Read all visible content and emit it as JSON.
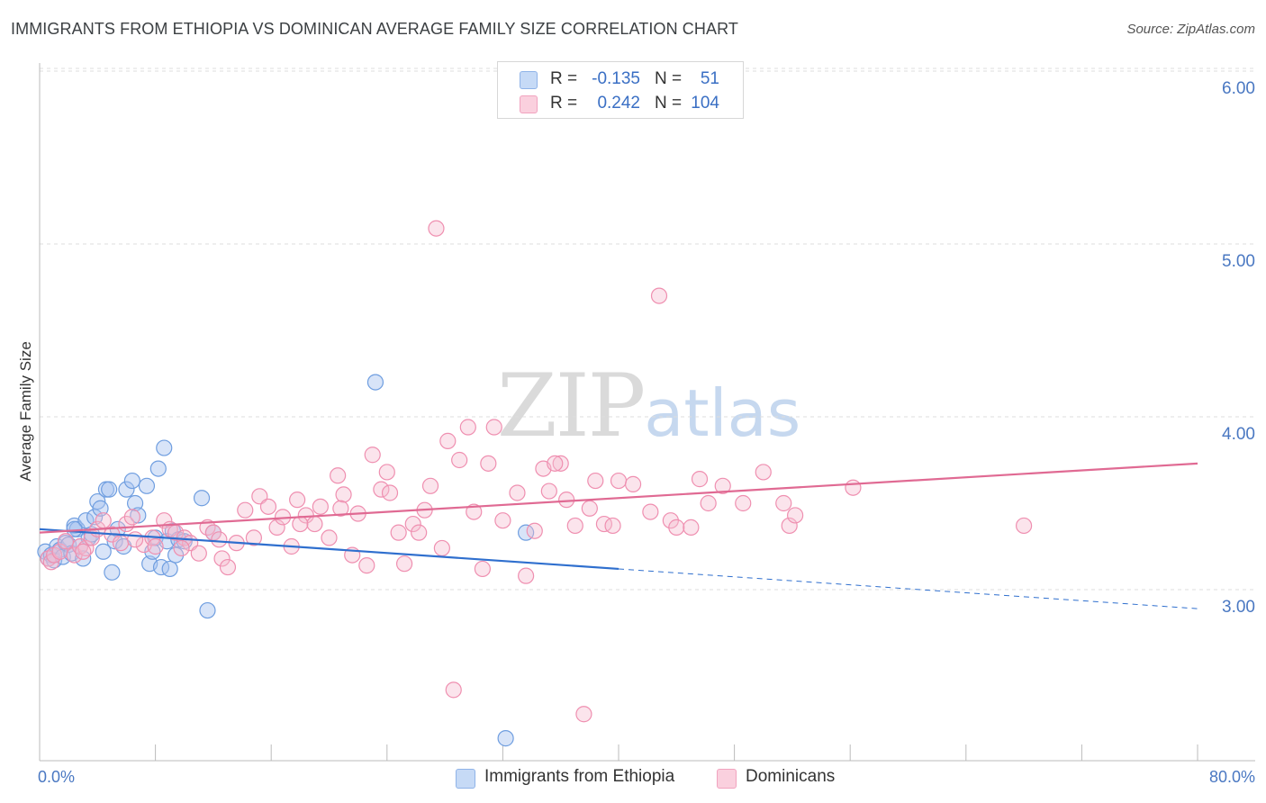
{
  "title": "IMMIGRANTS FROM ETHIOPIA VS DOMINICAN AVERAGE FAMILY SIZE CORRELATION CHART",
  "source": "Source: ZipAtlas.com",
  "watermark": {
    "zip": "ZIP",
    "atlas": "atlas"
  },
  "legend": {
    "rows": [
      {
        "r_label": "R =",
        "r_value": "-0.135",
        "n_label": "N =",
        "n_value": "51",
        "color": "#a9c4ef"
      },
      {
        "r_label": "R =",
        "r_value": "0.242",
        "n_label": "N =",
        "n_value": "104",
        "color": "#f6bcd0"
      }
    ]
  },
  "bottom_legend": [
    {
      "label": "Immigrants from Ethiopia",
      "color": "#a9c4ef"
    },
    {
      "label": "Dominicans",
      "color": "#f6bcd0"
    }
  ],
  "chart_data": {
    "type": "scatter",
    "ylabel": "Average Family Size",
    "xlabel": "",
    "xlim": [
      0,
      80
    ],
    "ylim": [
      2.0,
      6.2
    ],
    "x_tick_labels": [
      "0.0%",
      "80.0%"
    ],
    "y_ticks": [
      3.0,
      4.0,
      5.0,
      6.0
    ],
    "y_tick_labels": [
      "3.00",
      "4.00",
      "5.00",
      "6.00"
    ],
    "grid": true,
    "series": [
      {
        "name": "Immigrants from Ethiopia",
        "color": "#6f9ee0",
        "points": [
          [
            0.4,
            3.22
          ],
          [
            0.6,
            3.18
          ],
          [
            0.8,
            3.2
          ],
          [
            1.0,
            3.17
          ],
          [
            1.2,
            3.25
          ],
          [
            1.4,
            3.23
          ],
          [
            1.6,
            3.19
          ],
          [
            1.8,
            3.27
          ],
          [
            2.0,
            3.26
          ],
          [
            2.2,
            3.21
          ],
          [
            2.4,
            3.37
          ],
          [
            2.6,
            3.35
          ],
          [
            2.8,
            3.25
          ],
          [
            3.0,
            3.18
          ],
          [
            3.2,
            3.4
          ],
          [
            3.4,
            3.3
          ],
          [
            3.6,
            3.32
          ],
          [
            3.8,
            3.42
          ],
          [
            4.0,
            3.51
          ],
          [
            4.2,
            3.47
          ],
          [
            4.4,
            3.22
          ],
          [
            4.6,
            3.58
          ],
          [
            4.8,
            3.58
          ],
          [
            5.0,
            3.1
          ],
          [
            5.2,
            3.28
          ],
          [
            5.4,
            3.35
          ],
          [
            5.8,
            3.25
          ],
          [
            6.0,
            3.58
          ],
          [
            6.4,
            3.63
          ],
          [
            6.6,
            3.5
          ],
          [
            6.8,
            3.43
          ],
          [
            7.4,
            3.6
          ],
          [
            7.6,
            3.15
          ],
          [
            7.8,
            3.22
          ],
          [
            8.0,
            3.3
          ],
          [
            8.2,
            3.7
          ],
          [
            8.4,
            3.13
          ],
          [
            8.6,
            3.82
          ],
          [
            8.8,
            3.28
          ],
          [
            9.0,
            3.12
          ],
          [
            9.2,
            3.34
          ],
          [
            9.4,
            3.2
          ],
          [
            9.6,
            3.29
          ],
          [
            10.0,
            3.28
          ],
          [
            11.2,
            3.53
          ],
          [
            11.6,
            2.88
          ],
          [
            12.0,
            3.33
          ],
          [
            23.2,
            4.2
          ],
          [
            32.2,
            2.14
          ],
          [
            33.6,
            3.33
          ],
          [
            2.4,
            3.35
          ]
        ]
      },
      {
        "name": "Dominicans",
        "color": "#ef8fb0",
        "points": [
          [
            0.6,
            3.18
          ],
          [
            0.8,
            3.16
          ],
          [
            1.0,
            3.2
          ],
          [
            1.4,
            3.22
          ],
          [
            1.8,
            3.28
          ],
          [
            2.4,
            3.2
          ],
          [
            2.8,
            3.25
          ],
          [
            3.2,
            3.24
          ],
          [
            3.6,
            3.3
          ],
          [
            4.0,
            3.35
          ],
          [
            4.4,
            3.4
          ],
          [
            5.0,
            3.32
          ],
          [
            5.6,
            3.27
          ],
          [
            6.0,
            3.38
          ],
          [
            6.4,
            3.42
          ],
          [
            7.2,
            3.26
          ],
          [
            7.8,
            3.3
          ],
          [
            8.0,
            3.25
          ],
          [
            8.6,
            3.4
          ],
          [
            9.0,
            3.35
          ],
          [
            9.4,
            3.33
          ],
          [
            10.0,
            3.3
          ],
          [
            10.4,
            3.27
          ],
          [
            11.0,
            3.21
          ],
          [
            11.6,
            3.36
          ],
          [
            12.0,
            3.33
          ],
          [
            12.6,
            3.18
          ],
          [
            13.0,
            3.13
          ],
          [
            13.6,
            3.27
          ],
          [
            14.2,
            3.46
          ],
          [
            14.8,
            3.3
          ],
          [
            15.2,
            3.54
          ],
          [
            15.8,
            3.48
          ],
          [
            16.4,
            3.36
          ],
          [
            16.8,
            3.42
          ],
          [
            17.4,
            3.25
          ],
          [
            17.8,
            3.52
          ],
          [
            18.4,
            3.43
          ],
          [
            19.0,
            3.38
          ],
          [
            19.4,
            3.48
          ],
          [
            20.0,
            3.3
          ],
          [
            20.6,
            3.66
          ],
          [
            21.0,
            3.55
          ],
          [
            21.6,
            3.2
          ],
          [
            22.0,
            3.44
          ],
          [
            22.6,
            3.14
          ],
          [
            23.0,
            3.78
          ],
          [
            23.6,
            3.58
          ],
          [
            24.2,
            3.56
          ],
          [
            24.8,
            3.33
          ],
          [
            25.2,
            3.15
          ],
          [
            25.8,
            3.38
          ],
          [
            26.2,
            3.33
          ],
          [
            26.6,
            3.46
          ],
          [
            27.0,
            3.6
          ],
          [
            27.4,
            5.09
          ],
          [
            27.8,
            3.24
          ],
          [
            28.2,
            3.86
          ],
          [
            28.6,
            2.42
          ],
          [
            29.0,
            3.75
          ],
          [
            29.6,
            3.94
          ],
          [
            30.0,
            3.45
          ],
          [
            30.6,
            3.12
          ],
          [
            31.0,
            3.73
          ],
          [
            31.4,
            3.94
          ],
          [
            32.0,
            3.4
          ],
          [
            33.0,
            3.56
          ],
          [
            33.6,
            3.08
          ],
          [
            34.2,
            3.34
          ],
          [
            34.8,
            3.7
          ],
          [
            35.2,
            3.57
          ],
          [
            36.0,
            3.73
          ],
          [
            36.4,
            3.52
          ],
          [
            37.0,
            3.37
          ],
          [
            37.6,
            2.28
          ],
          [
            38.0,
            3.47
          ],
          [
            38.4,
            3.63
          ],
          [
            39.0,
            3.38
          ],
          [
            39.6,
            3.37
          ],
          [
            40.0,
            3.63
          ],
          [
            41.0,
            3.61
          ],
          [
            42.2,
            3.45
          ],
          [
            42.8,
            4.7
          ],
          [
            43.6,
            3.4
          ],
          [
            44.0,
            3.36
          ],
          [
            45.0,
            3.36
          ],
          [
            45.6,
            3.64
          ],
          [
            46.2,
            3.5
          ],
          [
            47.2,
            3.6
          ],
          [
            48.6,
            3.5
          ],
          [
            50.0,
            3.68
          ],
          [
            51.4,
            3.5
          ],
          [
            51.8,
            3.37
          ],
          [
            52.2,
            3.43
          ],
          [
            56.2,
            3.59
          ],
          [
            68.0,
            3.37
          ],
          [
            6.6,
            3.29
          ],
          [
            12.4,
            3.29
          ],
          [
            18.0,
            3.38
          ],
          [
            24.0,
            3.68
          ],
          [
            35.6,
            3.73
          ],
          [
            20.8,
            3.47
          ],
          [
            9.8,
            3.24
          ],
          [
            3.0,
            3.22
          ]
        ]
      }
    ],
    "trendlines": [
      {
        "series": "Immigrants from Ethiopia",
        "x0": 0,
        "y0": 3.35,
        "x1": 40,
        "y1": 3.12,
        "dashed_from_x": 40,
        "x_end": 80,
        "y_end": 2.89,
        "color": "#2f6fce"
      },
      {
        "series": "Dominicans",
        "x0": 0,
        "y0": 3.33,
        "x1": 80,
        "y1": 3.73,
        "color": "#e06a93"
      }
    ]
  }
}
